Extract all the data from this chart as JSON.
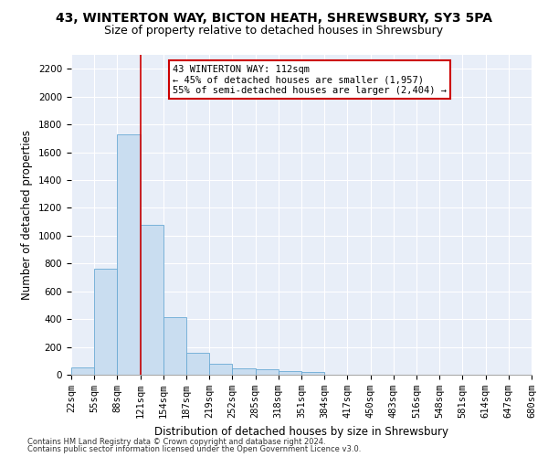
{
  "title1": "43, WINTERTON WAY, BICTON HEATH, SHREWSBURY, SY3 5PA",
  "title2": "Size of property relative to detached houses in Shrewsbury",
  "xlabel": "Distribution of detached houses by size in Shrewsbury",
  "ylabel": "Number of detached properties",
  "footer1": "Contains HM Land Registry data © Crown copyright and database right 2024.",
  "footer2": "Contains public sector information licensed under the Open Government Licence v3.0.",
  "annotation_line1": "43 WINTERTON WAY: 112sqm",
  "annotation_line2": "← 45% of detached houses are smaller (1,957)",
  "annotation_line3": "55% of semi-detached houses are larger (2,404) →",
  "bar_values": [
    55,
    760,
    1730,
    1075,
    415,
    155,
    80,
    45,
    40,
    28,
    18,
    0,
    0,
    0,
    0,
    0,
    0,
    0,
    0,
    0
  ],
  "x_labels": [
    "22sqm",
    "55sqm",
    "88sqm",
    "121sqm",
    "154sqm",
    "187sqm",
    "219sqm",
    "252sqm",
    "285sqm",
    "318sqm",
    "351sqm",
    "384sqm",
    "417sqm",
    "450sqm",
    "483sqm",
    "516sqm",
    "548sqm",
    "581sqm",
    "614sqm",
    "647sqm",
    "680sqm"
  ],
  "bar_color": "#c9ddf0",
  "bar_edge_color": "#6aaad4",
  "vline_color": "#cc0000",
  "annotation_box_color": "white",
  "annotation_box_edge_color": "#cc0000",
  "ylim": [
    0,
    2300
  ],
  "yticks": [
    0,
    200,
    400,
    600,
    800,
    1000,
    1200,
    1400,
    1600,
    1800,
    2000,
    2200
  ],
  "background_color": "#e8eef8",
  "fig_bg_color": "white",
  "title1_fontsize": 10,
  "title2_fontsize": 9,
  "xlabel_fontsize": 8.5,
  "ylabel_fontsize": 8.5,
  "annot_fontsize": 7.5,
  "tick_fontsize": 7.5,
  "footer_fontsize": 6
}
